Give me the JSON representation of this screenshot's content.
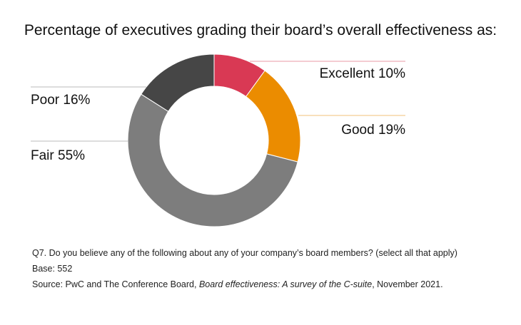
{
  "chart_data": {
    "type": "pie",
    "subtype": "donut",
    "title": "Percentage of executives grading their board’s overall effectiveness as:",
    "categories": [
      "Excellent",
      "Good",
      "Fair",
      "Poor"
    ],
    "values": [
      10,
      19,
      55,
      16
    ],
    "colors": [
      "#d93954",
      "#eb8c00",
      "#7d7d7d",
      "#464646"
    ],
    "labels": [
      "Excellent 10%",
      "Good 19%",
      "Fair 55%",
      "Poor 16%"
    ]
  },
  "footnotes": {
    "question": "Q7. Do you believe any of the following about any of your company’s board members? (select all that apply)",
    "base": "Base: 552",
    "source_prefix": "Source: PwC and The Conference Board, ",
    "source_title": "Board effectiveness: A survey of the C-suite",
    "source_suffix": ", November 2021."
  }
}
